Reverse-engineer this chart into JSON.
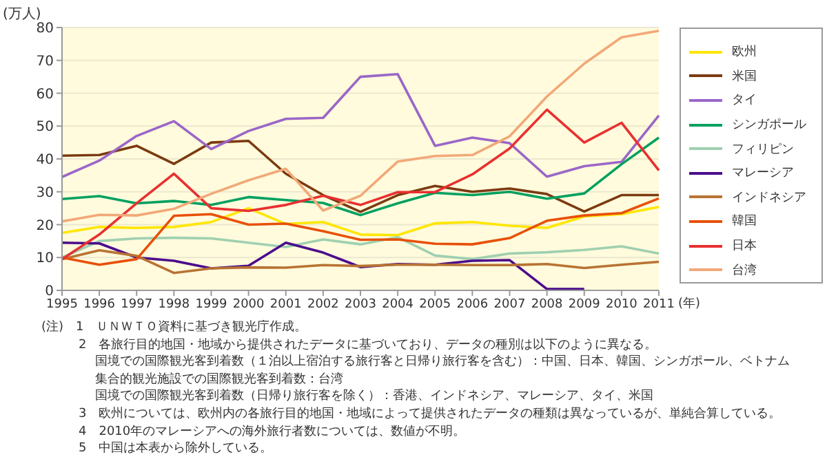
{
  "chart_data": {
    "type": "line",
    "ylabel": "(万人)",
    "xlabel": "(年)",
    "categories": [
      "1995",
      "1996",
      "1997",
      "1998",
      "1999",
      "2000",
      "2001",
      "2002",
      "2003",
      "2004",
      "2005",
      "2006",
      "2007",
      "2008",
      "2009",
      "2010",
      "2011"
    ],
    "ylim": [
      0,
      80
    ],
    "yticks": [
      0,
      10,
      20,
      30,
      40,
      50,
      60,
      70,
      80
    ],
    "grid": "y",
    "legend": "right",
    "marker": "none",
    "line_style": "solid",
    "series": [
      {
        "name": "欧州",
        "color": "#ffe600",
        "values": [
          17.5,
          19.3,
          19,
          19.3,
          20.8,
          25,
          20.2,
          20.8,
          17,
          16.8,
          20.4,
          20.8,
          19.7,
          19,
          22.5,
          23.2,
          25.4
        ]
      },
      {
        "name": "米国",
        "color": "#7b3a10",
        "values": [
          41,
          41.2,
          44,
          38.5,
          45,
          45.5,
          35.5,
          29,
          23.9,
          29,
          31.8,
          30,
          31,
          29.3,
          24,
          29,
          29
        ]
      },
      {
        "name": "タイ",
        "color": "#9b66c8",
        "values": [
          34.5,
          39.5,
          47,
          51.5,
          43,
          48.5,
          52.2,
          52.5,
          65,
          65.8,
          44,
          46.5,
          44.8,
          34.6,
          37.8,
          39.1,
          53.2
        ]
      },
      {
        "name": "シンガポール",
        "color": "#00a060",
        "values": [
          27.8,
          28.7,
          26.5,
          27.2,
          26,
          28.4,
          27.5,
          26.6,
          22.9,
          26.5,
          29.7,
          29,
          30,
          27.9,
          29.5,
          38.4,
          46.5
        ]
      },
      {
        "name": "フィリピン",
        "color": "#9fd0b0",
        "values": [
          10,
          15,
          15.8,
          16,
          15.8,
          14.5,
          13.2,
          15.5,
          14,
          16.2,
          10.6,
          9.5,
          11.2,
          11.6,
          12.3,
          13.4,
          11.2
        ]
      },
      {
        "name": "マレーシア",
        "color": "#4b0c8c",
        "values": [
          14.5,
          14.3,
          10,
          9,
          6.7,
          7.5,
          14.5,
          11.5,
          7.1,
          8,
          7.8,
          9,
          9.2,
          0.4,
          0.4,
          null,
          null
        ]
      },
      {
        "name": "インドネシア",
        "color": "#b87333",
        "values": [
          9.5,
          12.2,
          10.5,
          5.3,
          6.7,
          7,
          6.9,
          7.7,
          7.4,
          7.8,
          7.8,
          7.7,
          7.7,
          8,
          6.8,
          7.8,
          8.7
        ]
      },
      {
        "name": "韓国",
        "color": "#e8500a",
        "values": [
          10,
          7.8,
          9.5,
          22.7,
          23.2,
          20,
          20.3,
          18,
          15.4,
          15.5,
          14.2,
          14,
          15.9,
          21.2,
          22.8,
          23.5,
          28
        ]
      },
      {
        "name": "日本",
        "color": "#e83030",
        "values": [
          9.5,
          17,
          26.5,
          35.5,
          25,
          24.2,
          26,
          28.8,
          26,
          29.9,
          29.9,
          35.3,
          43.2,
          55,
          45,
          51,
          36.5
        ]
      },
      {
        "name": "台湾",
        "color": "#f2a878",
        "values": [
          21,
          23,
          22.8,
          24.8,
          29.4,
          33.5,
          37,
          24.3,
          28.8,
          39.2,
          40.9,
          41.2,
          46.9,
          59,
          69,
          77,
          79
        ]
      }
    ],
    "annotations": [
      "(注)　1　ＵＮＷＴＯ資料に基づき観光庁作成。",
      "2　各旅行目的地国・地域から提供されたデータに基づいており、データの種別は以下のように異なる。",
      "国境での国際観光客到着数（１泊以上宿泊する旅行客と日帰り旅行客を含む）：中国、日本、韓国、シンガポール、ベトナム",
      "集合的観光施設での国際観光客到着数：台湾",
      "国境での国際観光客到着数（日帰り旅行客を除く）：香港、インドネシア、マレーシア、タイ、米国",
      "3　欧州については、欧州内の各旅行目的地国・地域によって提供されたデータの種類は異なっているが、単純合算している。",
      "4　2010年のマレーシアへの海外旅行者数については、数値が不明。",
      "5　中国は本表から除外している。"
    ]
  }
}
